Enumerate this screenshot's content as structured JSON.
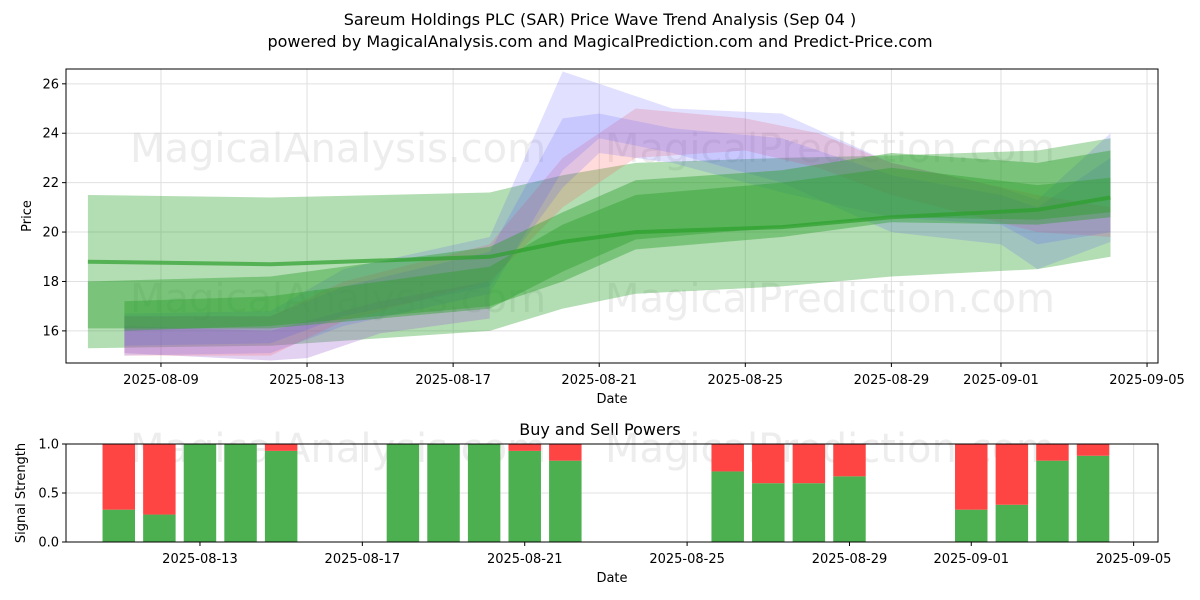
{
  "header": {
    "title": "Sareum Holdings PLC (SAR) Price Wave Trend Analysis (Sep 04 )",
    "subtitle": "powered by MagicalAnalysis.com and MagicalPrediction.com and Predict-Price.com"
  },
  "watermarks": [
    "MagicalAnalysis.com",
    "MagicalPrediction.com"
  ],
  "colors": {
    "green": "#2ca02c",
    "blue": "#4b4bff",
    "red": "#ff5a5a",
    "purple": "#9b59d0",
    "buy": "#4caf50",
    "sell": "#ff4444"
  },
  "chart_data": [
    {
      "type": "area",
      "title": "",
      "xlabel": "Date",
      "ylabel": "Price",
      "xlim": [
        "2025-08-07",
        "2025-09-05"
      ],
      "ylim": [
        14.7,
        26.6
      ],
      "xticks": [
        "2025-08-09",
        "2025-08-13",
        "2025-08-17",
        "2025-08-21",
        "2025-08-25",
        "2025-08-29",
        "2025-09-01",
        "2025-09-05"
      ],
      "yticks": [
        16,
        18,
        20,
        22,
        24,
        26
      ],
      "grid": true,
      "green_central": {
        "x": [
          "2025-08-07",
          "2025-08-12",
          "2025-08-18",
          "2025-08-20",
          "2025-08-22",
          "2025-08-26",
          "2025-08-29",
          "2025-09-02",
          "2025-09-04"
        ],
        "y": [
          18.8,
          18.7,
          19.0,
          19.6,
          20.0,
          20.2,
          20.6,
          20.9,
          21.4
        ],
        "band_low": [
          15.3,
          15.4,
          16.0,
          16.9,
          17.5,
          17.8,
          18.2,
          18.5,
          19.0
        ],
        "band_high": [
          21.5,
          21.4,
          21.6,
          22.3,
          22.8,
          23.0,
          23.1,
          23.3,
          23.8
        ]
      },
      "green_waves": [
        {
          "x": [
            "2025-08-07",
            "2025-08-12",
            "2025-08-18",
            "2025-08-20",
            "2025-08-22",
            "2025-08-26",
            "2025-08-29",
            "2025-09-02",
            "2025-09-04"
          ],
          "low": [
            16.1,
            16.1,
            16.9,
            18.4,
            19.7,
            20.2,
            20.6,
            20.5,
            20.8
          ],
          "high": [
            18.0,
            18.2,
            19.4,
            20.8,
            22.1,
            22.5,
            23.2,
            22.8,
            23.3
          ]
        },
        {
          "x": [
            "2025-08-08",
            "2025-08-12",
            "2025-08-18",
            "2025-08-20",
            "2025-08-22",
            "2025-08-26",
            "2025-08-29",
            "2025-09-02",
            "2025-09-04"
          ],
          "low": [
            16.0,
            16.2,
            17.0,
            18.0,
            19.3,
            19.8,
            20.4,
            20.3,
            20.6
          ],
          "high": [
            17.2,
            17.4,
            18.6,
            20.3,
            21.5,
            22.0,
            22.6,
            21.9,
            22.2
          ]
        }
      ],
      "blue_waves": [
        {
          "x": [
            "2025-08-08",
            "2025-08-12",
            "2025-08-14",
            "2025-08-18",
            "2025-08-20",
            "2025-08-21",
            "2025-08-23",
            "2025-08-26",
            "2025-08-29",
            "2025-09-01",
            "2025-09-02",
            "2025-09-04"
          ],
          "low": [
            15.0,
            15.1,
            16.2,
            17.5,
            22.5,
            23.8,
            23.2,
            22.0,
            20.0,
            19.5,
            18.5,
            19.6
          ],
          "high": [
            16.7,
            16.8,
            18.5,
            19.8,
            26.5,
            26.0,
            25.0,
            24.8,
            22.8,
            21.8,
            21.3,
            24.0
          ]
        },
        {
          "x": [
            "2025-08-08",
            "2025-08-12",
            "2025-08-14",
            "2025-08-18",
            "2025-08-20",
            "2025-08-21",
            "2025-08-23",
            "2025-08-26",
            "2025-08-29",
            "2025-09-01",
            "2025-09-02",
            "2025-09-04"
          ],
          "low": [
            15.4,
            15.5,
            16.6,
            17.8,
            21.8,
            23.2,
            22.8,
            21.6,
            20.6,
            20.3,
            19.5,
            20.0
          ],
          "high": [
            16.6,
            16.6,
            17.8,
            19.2,
            24.6,
            24.8,
            24.2,
            23.8,
            22.3,
            21.5,
            21.0,
            23.0
          ]
        }
      ],
      "red_waves": [
        {
          "x": [
            "2025-08-08",
            "2025-08-12",
            "2025-08-14",
            "2025-08-18",
            "2025-08-20",
            "2025-08-22",
            "2025-08-25",
            "2025-08-27",
            "2025-08-29",
            "2025-09-02",
            "2025-09-04"
          ],
          "low": [
            15.0,
            15.0,
            16.4,
            18.0,
            21.0,
            23.0,
            23.3,
            22.6,
            21.5,
            20.0,
            19.8
          ],
          "high": [
            16.6,
            16.6,
            18.0,
            19.5,
            23.0,
            25.0,
            24.6,
            24.0,
            22.8,
            21.5,
            21.0
          ]
        }
      ],
      "purple_waves": [
        {
          "x": [
            "2025-08-08",
            "2025-08-12",
            "2025-08-13",
            "2025-08-15",
            "2025-08-18"
          ],
          "low": [
            15.1,
            14.8,
            14.9,
            15.9,
            16.5
          ],
          "high": [
            16.2,
            16.0,
            16.4,
            17.2,
            18.0
          ]
        }
      ]
    },
    {
      "type": "bar",
      "title": "Buy and Sell Powers",
      "xlabel": "Date",
      "ylabel": "Signal Strength",
      "xlim": [
        "2025-08-10",
        "2025-09-05"
      ],
      "ylim": [
        0,
        1
      ],
      "xticks": [
        "2025-08-13",
        "2025-08-17",
        "2025-08-21",
        "2025-08-25",
        "2025-08-29",
        "2025-09-01",
        "2025-09-05"
      ],
      "yticks": [
        "0.0",
        "0.5",
        "1.0"
      ],
      "grid": true,
      "x": [
        "2025-08-11",
        "2025-08-12",
        "2025-08-13",
        "2025-08-14",
        "2025-08-15",
        "2025-08-18",
        "2025-08-19",
        "2025-08-20",
        "2025-08-21",
        "2025-08-22",
        "2025-08-26",
        "2025-08-27",
        "2025-08-28",
        "2025-08-29",
        "2025-09-01",
        "2025-09-02",
        "2025-09-03",
        "2025-09-04"
      ],
      "series": [
        {
          "name": "Buy",
          "values": [
            0.33,
            0.28,
            1.0,
            1.0,
            0.93,
            1.0,
            1.0,
            1.0,
            0.93,
            0.83,
            0.72,
            0.6,
            0.6,
            0.67,
            0.33,
            0.38,
            0.83,
            0.88
          ]
        },
        {
          "name": "Sell",
          "values": [
            0.67,
            0.72,
            0.0,
            0.0,
            0.07,
            0.0,
            0.0,
            0.0,
            0.07,
            0.17,
            0.28,
            0.4,
            0.4,
            0.33,
            0.67,
            0.62,
            0.17,
            0.12
          ]
        }
      ]
    }
  ]
}
